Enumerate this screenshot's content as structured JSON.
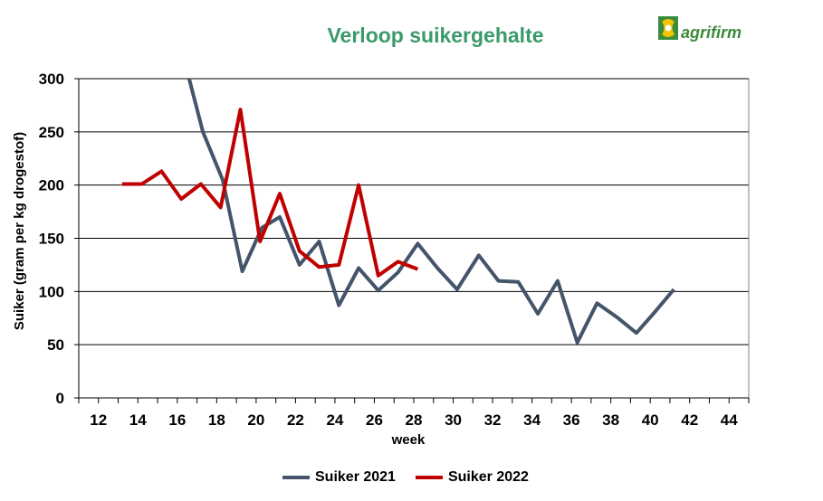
{
  "logo_text": "agrifirm",
  "chart_data": {
    "type": "line",
    "title": "Verloop suikergehalte",
    "xlabel": "week",
    "ylabel": "Suiker (gram per kg drogestof)",
    "xlim": [
      11,
      45
    ],
    "ylim": [
      0,
      300
    ],
    "xticks": [
      12,
      14,
      16,
      18,
      20,
      22,
      24,
      26,
      28,
      30,
      32,
      34,
      36,
      38,
      40,
      42,
      44
    ],
    "yticks": [
      0,
      50,
      100,
      150,
      200,
      250,
      300
    ],
    "grid": "horizontal",
    "legend_position": "bottom",
    "series": [
      {
        "name": "Suiker 2021",
        "color": "#44546a",
        "points": [
          [
            16.6,
            300
          ],
          [
            17.3,
            250
          ],
          [
            18.3,
            205
          ],
          [
            19.3,
            119
          ],
          [
            20.3,
            160
          ],
          [
            21.2,
            170
          ],
          [
            22.2,
            125
          ],
          [
            23.2,
            147
          ],
          [
            24.2,
            87
          ],
          [
            25.2,
            122
          ],
          [
            26.2,
            101
          ],
          [
            27.2,
            118
          ],
          [
            28.2,
            145
          ],
          [
            29.2,
            122
          ],
          [
            30.2,
            102
          ],
          [
            31.3,
            134
          ],
          [
            32.3,
            110
          ],
          [
            33.3,
            109
          ],
          [
            34.3,
            79
          ],
          [
            35.3,
            110
          ],
          [
            36.3,
            52
          ],
          [
            37.3,
            89
          ],
          [
            38.3,
            76
          ],
          [
            39.3,
            61
          ],
          [
            40.2,
            80
          ],
          [
            41.2,
            102
          ]
        ]
      },
      {
        "name": "Suiker 2022",
        "color": "#c00000",
        "points": [
          [
            13.2,
            201
          ],
          [
            14.2,
            201
          ],
          [
            15.2,
            213
          ],
          [
            16.2,
            187
          ],
          [
            17.2,
            201
          ],
          [
            18.2,
            179
          ],
          [
            19.2,
            271
          ],
          [
            20.2,
            147
          ],
          [
            21.2,
            192
          ],
          [
            22.2,
            138
          ],
          [
            23.2,
            123
          ],
          [
            24.2,
            125
          ],
          [
            25.2,
            200
          ],
          [
            26.2,
            115
          ],
          [
            27.2,
            128
          ],
          [
            28.2,
            121
          ]
        ]
      }
    ]
  }
}
